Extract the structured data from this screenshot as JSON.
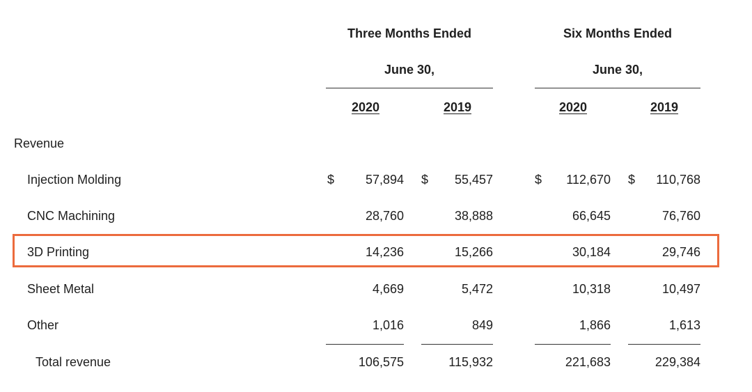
{
  "headers": {
    "three_months": "Three Months Ended",
    "three_months_date": "June 30,",
    "six_months": "Six Months Ended",
    "six_months_date": "June 30,",
    "years": [
      "2020",
      "2019",
      "2020",
      "2019"
    ]
  },
  "section_label": "Revenue",
  "currency_symbol": "$",
  "rows": [
    {
      "label": "Injection Molding",
      "values": [
        "57,894",
        "55,457",
        "112,670",
        "110,768"
      ]
    },
    {
      "label": "CNC Machining",
      "values": [
        "28,760",
        "38,888",
        "66,645",
        "76,760"
      ]
    },
    {
      "label": "3D Printing",
      "values": [
        "14,236",
        "15,266",
        "30,184",
        "29,746"
      ]
    },
    {
      "label": "Sheet Metal",
      "values": [
        "4,669",
        "5,472",
        "10,318",
        "10,497"
      ]
    },
    {
      "label": "Other",
      "values": [
        "1,016",
        "849",
        "1,866",
        "1,613"
      ]
    }
  ],
  "total": {
    "label": "Total revenue",
    "values": [
      "106,575",
      "115,932",
      "221,683",
      "229,384"
    ]
  },
  "colors": {
    "highlight": "#ec6b3d",
    "text": "#1f1f1f"
  }
}
